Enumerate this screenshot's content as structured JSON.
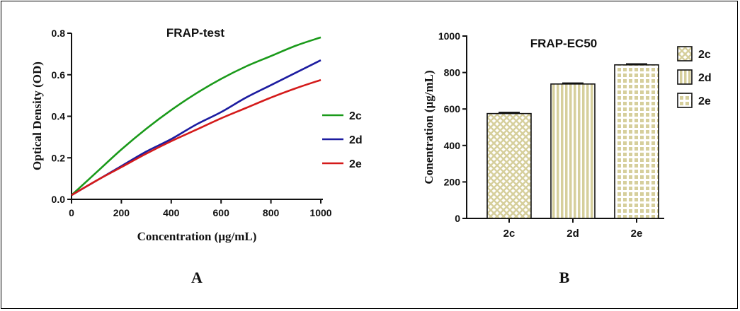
{
  "panels": {
    "a_label": "A",
    "b_label": "B"
  },
  "chart_data": [
    {
      "type": "line",
      "title": "FRAP-test",
      "xlabel": "Concentration (μg/mL)",
      "ylabel": "Optical Density (OD)",
      "xlim": [
        0,
        1000
      ],
      "ylim": [
        0,
        0.8
      ],
      "xticks": [
        "0",
        "200",
        "400",
        "600",
        "800",
        "1000"
      ],
      "yticks": [
        "0.0",
        "0.2",
        "0.4",
        "0.6",
        "0.8"
      ],
      "legend_position": "right",
      "x": [
        0,
        100,
        200,
        300,
        400,
        500,
        600,
        700,
        800,
        900,
        1000
      ],
      "series": [
        {
          "name": "2c",
          "color": "#1a9a1a",
          "values": [
            0.02,
            0.13,
            0.24,
            0.34,
            0.43,
            0.51,
            0.58,
            0.64,
            0.69,
            0.74,
            0.78
          ]
        },
        {
          "name": "2d",
          "color": "#1c1ca0",
          "values": [
            0.02,
            0.09,
            0.16,
            0.23,
            0.29,
            0.36,
            0.42,
            0.49,
            0.55,
            0.61,
            0.67
          ]
        },
        {
          "name": "2e",
          "color": "#d41a1a",
          "values": [
            0.02,
            0.09,
            0.155,
            0.22,
            0.28,
            0.335,
            0.39,
            0.44,
            0.49,
            0.535,
            0.575
          ]
        }
      ]
    },
    {
      "type": "bar",
      "title": "FRAP-EC50",
      "ylabel": "Conentration (μg/mL)",
      "ylim": [
        0,
        1000
      ],
      "yticks": [
        "0",
        "200",
        "400",
        "600",
        "800",
        "1000"
      ],
      "categories": [
        "2c",
        "2d",
        "2e"
      ],
      "values": [
        575,
        737,
        842
      ],
      "errors": [
        6,
        5,
        5
      ],
      "legend_position": "top-right",
      "legend": [
        "2c",
        "2d",
        "2e"
      ],
      "patterns": [
        "crosshatch",
        "vertical-stripes",
        "checker"
      ],
      "bar_color": "#d8d2a6"
    }
  ]
}
